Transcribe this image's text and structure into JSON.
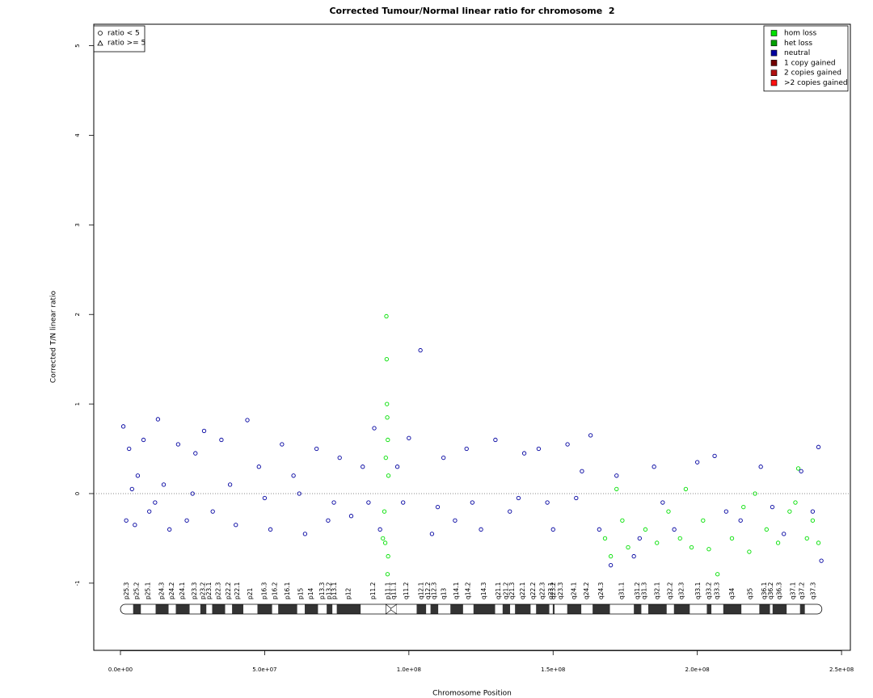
{
  "chart_data": {
    "type": "scatter",
    "title": "Corrected Tumour/Normal linear ratio for chromosome  2",
    "xlabel": "Chromosome Position",
    "ylabel": "Corrected T/N linear ratio",
    "xlim": [
      -9250000,
      253060000
    ],
    "ylim": [
      -1.75,
      5.24
    ],
    "xticks": [
      {
        "value": 0,
        "label": "0.0e+00"
      },
      {
        "value": 50000000,
        "label": "5.0e+07"
      },
      {
        "value": 100000000,
        "label": "1.0e+08"
      },
      {
        "value": 150000000,
        "label": "1.5e+08"
      },
      {
        "value": 200000000,
        "label": "2.0e+08"
      },
      {
        "value": 250000000,
        "label": "2.5e+08"
      }
    ],
    "yticks": [
      -1,
      0,
      1,
      2,
      3,
      4,
      5
    ],
    "reference_line": 0,
    "shape_legend": [
      "ratio < 5",
      "ratio >= 5"
    ],
    "legend": "top-right",
    "series": [
      {
        "name": "hom loss",
        "color": "#00e000",
        "x": [
          91000000,
          91500000,
          91800000,
          92000000,
          92200000,
          92300000,
          92400000,
          92500000,
          92600000,
          92700000,
          92800000,
          92900000,
          168000000,
          170000000,
          172000000,
          174000000,
          176000000,
          182000000,
          186000000,
          190000000,
          194000000,
          196000000,
          198000000,
          202000000,
          204000000,
          207000000,
          212000000,
          216000000,
          218000000,
          220000000,
          224000000,
          228000000,
          232000000,
          234000000,
          235000000,
          238000000,
          240000000,
          242000000
        ],
        "values": [
          -0.5,
          -0.2,
          -0.55,
          0.4,
          1.98,
          1.5,
          1.0,
          0.85,
          -0.9,
          0.6,
          -0.7,
          0.2,
          -0.5,
          -0.7,
          0.05,
          -0.3,
          -0.6,
          -0.4,
          -0.55,
          -0.2,
          -0.5,
          0.05,
          -0.6,
          -0.3,
          -0.62,
          -0.9,
          -0.5,
          -0.15,
          -0.65,
          0,
          -0.4,
          -0.55,
          -0.2,
          -0.1,
          0.28,
          -0.5,
          -0.3,
          -0.55
        ]
      },
      {
        "name": "het loss",
        "color": "#00a000",
        "x": [],
        "values": []
      },
      {
        "name": "neutral",
        "color": "#0000a0",
        "x": [
          1000000,
          2000000,
          3000000,
          4000000,
          5000000,
          6000000,
          8000000,
          10000000,
          12000000,
          13000000,
          15000000,
          17000000,
          20000000,
          23000000,
          25000000,
          26000000,
          29000000,
          32000000,
          35000000,
          38000000,
          40000000,
          44000000,
          48000000,
          50000000,
          52000000,
          56000000,
          60000000,
          62000000,
          64000000,
          68000000,
          72000000,
          74000000,
          76000000,
          80000000,
          84000000,
          86000000,
          88000000,
          90000000,
          96000000,
          98000000,
          100000000,
          104000000,
          108000000,
          110000000,
          112000000,
          116000000,
          120000000,
          122000000,
          125000000,
          130000000,
          135000000,
          138000000,
          140000000,
          145000000,
          148000000,
          150000000,
          155000000,
          158000000,
          160000000,
          163000000,
          166000000,
          170000000,
          172000000,
          178000000,
          180000000,
          185000000,
          188000000,
          192000000,
          200000000,
          206000000,
          210000000,
          215000000,
          222000000,
          226000000,
          230000000,
          236000000,
          240000000,
          242000000,
          243000000
        ],
        "values": [
          0.75,
          -0.3,
          0.5,
          0.05,
          -0.35,
          0.2,
          0.6,
          -0.2,
          -0.1,
          0.83,
          0.1,
          -0.4,
          0.55,
          -0.3,
          0,
          0.45,
          0.7,
          -0.2,
          0.6,
          0.1,
          -0.35,
          0.82,
          0.3,
          -0.05,
          -0.4,
          0.55,
          0.2,
          0,
          -0.45,
          0.5,
          -0.3,
          -0.1,
          0.4,
          -0.25,
          0.3,
          -0.1,
          0.73,
          -0.4,
          0.3,
          -0.1,
          0.62,
          1.6,
          -0.45,
          -0.15,
          0.4,
          -0.3,
          0.5,
          -0.1,
          -0.4,
          0.6,
          -0.2,
          -0.05,
          0.45,
          0.5,
          -0.1,
          -0.4,
          0.55,
          -0.05,
          0.25,
          0.65,
          -0.4,
          -0.8,
          0.2,
          -0.7,
          -0.5,
          0.3,
          -0.1,
          -0.4,
          0.35,
          0.42,
          -0.2,
          -0.3,
          0.3,
          -0.15,
          -0.45,
          0.25,
          -0.2,
          0.52,
          -0.75
        ]
      },
      {
        "name": "1 copy gained",
        "color": "#700000",
        "x": [],
        "values": []
      },
      {
        "name": "2 copies gained",
        "color": "#b01010",
        "x": [],
        "values": []
      },
      {
        "name": ">2 copies gained",
        "color": "#ff1010",
        "x": [],
        "values": []
      }
    ],
    "bands": [
      {
        "name": "p25.3",
        "start": 0,
        "end": 4400000,
        "stain": "gneg"
      },
      {
        "name": "p25.2",
        "start": 4400000,
        "end": 7100000,
        "stain": "gpos"
      },
      {
        "name": "p25.1",
        "start": 7100000,
        "end": 12200000,
        "stain": "gneg"
      },
      {
        "name": "p24.3",
        "start": 12200000,
        "end": 16700000,
        "stain": "gpos"
      },
      {
        "name": "p24.2",
        "start": 16700000,
        "end": 19200000,
        "stain": "gneg"
      },
      {
        "name": "p24.1",
        "start": 19200000,
        "end": 24000000,
        "stain": "gpos"
      },
      {
        "name": "p23.3",
        "start": 24000000,
        "end": 27700000,
        "stain": "gneg"
      },
      {
        "name": "p23.2",
        "start": 27700000,
        "end": 29800000,
        "stain": "gpos"
      },
      {
        "name": "p23.1",
        "start": 29800000,
        "end": 31800000,
        "stain": "gneg"
      },
      {
        "name": "p22.3",
        "start": 31800000,
        "end": 36300000,
        "stain": "gpos"
      },
      {
        "name": "p22.2",
        "start": 36300000,
        "end": 38700000,
        "stain": "gneg"
      },
      {
        "name": "p22.1",
        "start": 38700000,
        "end": 42600000,
        "stain": "gpos"
      },
      {
        "name": "p21",
        "start": 42600000,
        "end": 47500000,
        "stain": "gneg"
      },
      {
        "name": "p16.3",
        "start": 47500000,
        "end": 52600000,
        "stain": "gpos"
      },
      {
        "name": "p16.2",
        "start": 52600000,
        "end": 54700000,
        "stain": "gneg"
      },
      {
        "name": "p16.1",
        "start": 54700000,
        "end": 61300000,
        "stain": "gpos"
      },
      {
        "name": "p15",
        "start": 61300000,
        "end": 63900000,
        "stain": "gneg"
      },
      {
        "name": "p14",
        "start": 63900000,
        "end": 68500000,
        "stain": "gpos"
      },
      {
        "name": "p13.3",
        "start": 68500000,
        "end": 71500000,
        "stain": "gneg"
      },
      {
        "name": "p13.2",
        "start": 71500000,
        "end": 73500000,
        "stain": "gpos"
      },
      {
        "name": "p13.1",
        "start": 73500000,
        "end": 75000000,
        "stain": "gneg"
      },
      {
        "name": "p12",
        "start": 75000000,
        "end": 83300000,
        "stain": "gpos"
      },
      {
        "name": "p11.2",
        "start": 83300000,
        "end": 92000000,
        "stain": "gneg"
      },
      {
        "name": "p11.1",
        "start": 92000000,
        "end": 93800000,
        "stain": "acen"
      },
      {
        "name": "q11.1",
        "start": 93800000,
        "end": 95800000,
        "stain": "acen"
      },
      {
        "name": "q11.2",
        "start": 95800000,
        "end": 102700000,
        "stain": "gneg"
      },
      {
        "name": "q12.1",
        "start": 102700000,
        "end": 106000000,
        "stain": "gpos"
      },
      {
        "name": "q12.2",
        "start": 106000000,
        "end": 107500000,
        "stain": "gneg"
      },
      {
        "name": "q12.3",
        "start": 107500000,
        "end": 110200000,
        "stain": "gpos"
      },
      {
        "name": "q13",
        "start": 110200000,
        "end": 114400000,
        "stain": "gneg"
      },
      {
        "name": "q14.1",
        "start": 114400000,
        "end": 118800000,
        "stain": "gpos"
      },
      {
        "name": "q14.2",
        "start": 118800000,
        "end": 122400000,
        "stain": "gneg"
      },
      {
        "name": "q14.3",
        "start": 122400000,
        "end": 129900000,
        "stain": "gpos"
      },
      {
        "name": "q21.1",
        "start": 129900000,
        "end": 132500000,
        "stain": "gneg"
      },
      {
        "name": "q21.2",
        "start": 132500000,
        "end": 135100000,
        "stain": "gpos"
      },
      {
        "name": "q21.3",
        "start": 135100000,
        "end": 136800000,
        "stain": "gneg"
      },
      {
        "name": "q22.1",
        "start": 136800000,
        "end": 142200000,
        "stain": "gpos"
      },
      {
        "name": "q22.2",
        "start": 142200000,
        "end": 144100000,
        "stain": "gneg"
      },
      {
        "name": "q22.3",
        "start": 144100000,
        "end": 148700000,
        "stain": "gpos"
      },
      {
        "name": "q23.1",
        "start": 148700000,
        "end": 149900000,
        "stain": "gneg"
      },
      {
        "name": "q23.2",
        "start": 149900000,
        "end": 150500000,
        "stain": "gpos"
      },
      {
        "name": "q23.3",
        "start": 150500000,
        "end": 154900000,
        "stain": "gneg"
      },
      {
        "name": "q24.1",
        "start": 154900000,
        "end": 159800000,
        "stain": "gpos"
      },
      {
        "name": "q24.2",
        "start": 159800000,
        "end": 163700000,
        "stain": "gneg"
      },
      {
        "name": "q24.3",
        "start": 163700000,
        "end": 169700000,
        "stain": "gpos"
      },
      {
        "name": "q31.1",
        "start": 169700000,
        "end": 178000000,
        "stain": "gneg"
      },
      {
        "name": "q31.2",
        "start": 178000000,
        "end": 180600000,
        "stain": "gpos"
      },
      {
        "name": "q31.3",
        "start": 180600000,
        "end": 183000000,
        "stain": "gneg"
      },
      {
        "name": "q32.1",
        "start": 183000000,
        "end": 189400000,
        "stain": "gpos"
      },
      {
        "name": "q32.2",
        "start": 189400000,
        "end": 191900000,
        "stain": "gneg"
      },
      {
        "name": "q32.3",
        "start": 191900000,
        "end": 197400000,
        "stain": "gpos"
      },
      {
        "name": "q33.1",
        "start": 197400000,
        "end": 203300000,
        "stain": "gneg"
      },
      {
        "name": "q33.2",
        "start": 203300000,
        "end": 204900000,
        "stain": "gpos"
      },
      {
        "name": "q33.3",
        "start": 204900000,
        "end": 209000000,
        "stain": "gneg"
      },
      {
        "name": "q34",
        "start": 209000000,
        "end": 215300000,
        "stain": "gpos"
      },
      {
        "name": "q35",
        "start": 215300000,
        "end": 221500000,
        "stain": "gneg"
      },
      {
        "name": "q36.1",
        "start": 221500000,
        "end": 225200000,
        "stain": "gpos"
      },
      {
        "name": "q36.2",
        "start": 225200000,
        "end": 226100000,
        "stain": "gneg"
      },
      {
        "name": "q36.3",
        "start": 226100000,
        "end": 231000000,
        "stain": "gpos"
      },
      {
        "name": "q37.1",
        "start": 231000000,
        "end": 235600000,
        "stain": "gneg"
      },
      {
        "name": "q37.2",
        "start": 235600000,
        "end": 237300000,
        "stain": "gpos"
      },
      {
        "name": "q37.3",
        "start": 237300000,
        "end": 243200000,
        "stain": "gneg"
      }
    ]
  }
}
